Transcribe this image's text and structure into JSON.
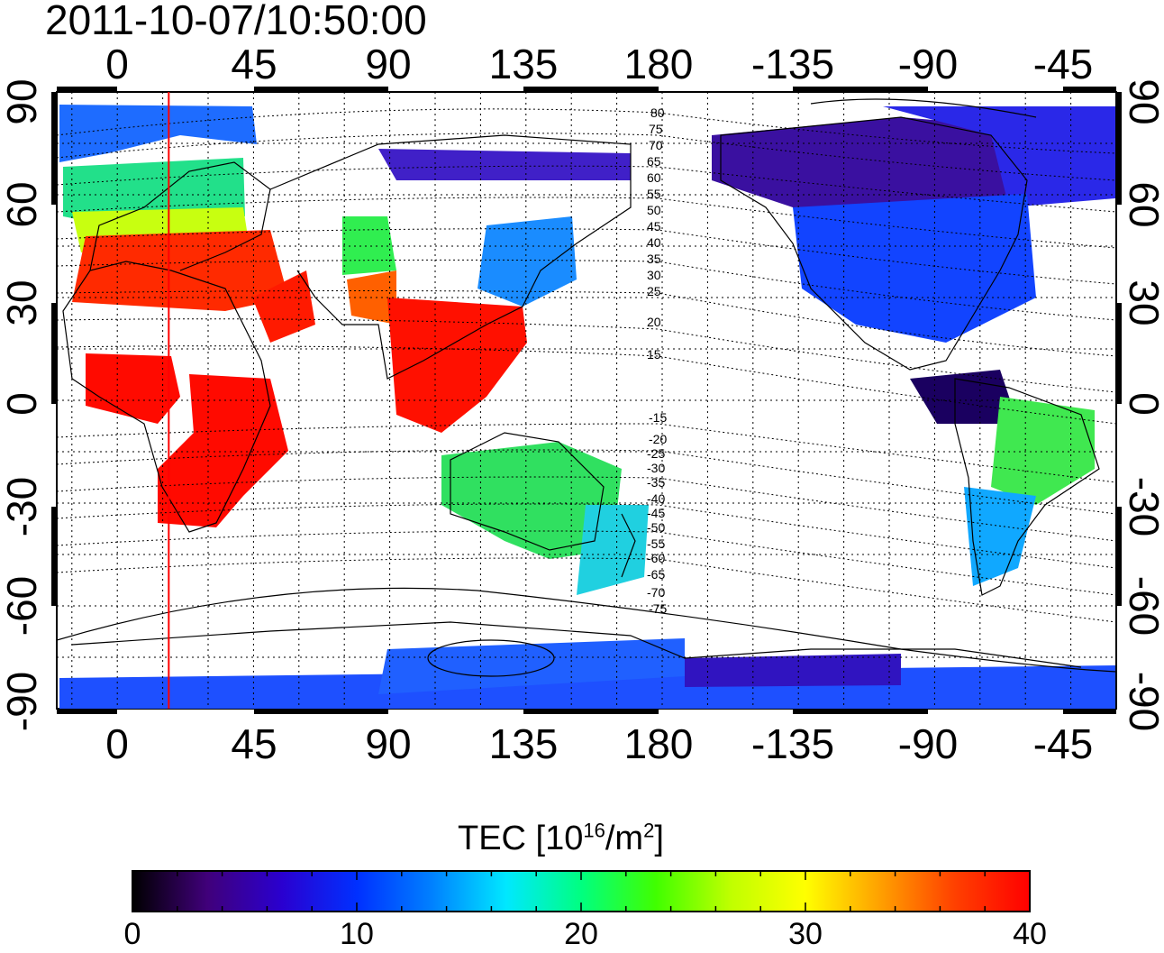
{
  "timestamp": "2011-10-07/10:50:00",
  "axes": {
    "top_ticks": [
      "0",
      "45",
      "90",
      "135",
      "180",
      "-135",
      "-90",
      "-45"
    ],
    "bottom_ticks": [
      "0",
      "45",
      "90",
      "135",
      "180",
      "-135",
      "-90",
      "-45"
    ],
    "left_ticks": [
      "90",
      "60",
      "30",
      "0",
      "-30",
      "-60",
      "-90"
    ],
    "right_ticks": [
      "90",
      "60",
      "30",
      "0",
      "-30",
      "-60",
      "-90"
    ]
  },
  "map": {
    "projection": "equirectangular",
    "longitude_range": [
      -20,
      330
    ],
    "latitude_range": [
      -90,
      90
    ],
    "grid_step_degrees": 15,
    "marker_longitude": 17,
    "marker_color": "#ff0000",
    "magnetic_latitude_labels": [
      "80",
      "75",
      "70",
      "65",
      "60",
      "55",
      "50",
      "45",
      "40",
      "35",
      "30",
      "25",
      "20",
      "15",
      "-15",
      "-20",
      "-25",
      "-30",
      "-35",
      "-40",
      "-45",
      "-50",
      "-55",
      "-60",
      "-65",
      "-70",
      "-75"
    ]
  },
  "colorbar": {
    "title_main": "TEC  [10",
    "title_exp1": "16",
    "title_mid": "/m",
    "title_exp2": "2",
    "title_end": "]",
    "min": 0,
    "max": 40,
    "tick_labels": [
      "0",
      "10",
      "20",
      "30",
      "40"
    ],
    "colors": [
      "#000000",
      "#40007a",
      "#2a00d0",
      "#0030ff",
      "#0080ff",
      "#00e8ff",
      "#00ff80",
      "#40ff00",
      "#c0ff00",
      "#ffff00",
      "#ffa000",
      "#ff4000",
      "#ff0000"
    ]
  }
}
